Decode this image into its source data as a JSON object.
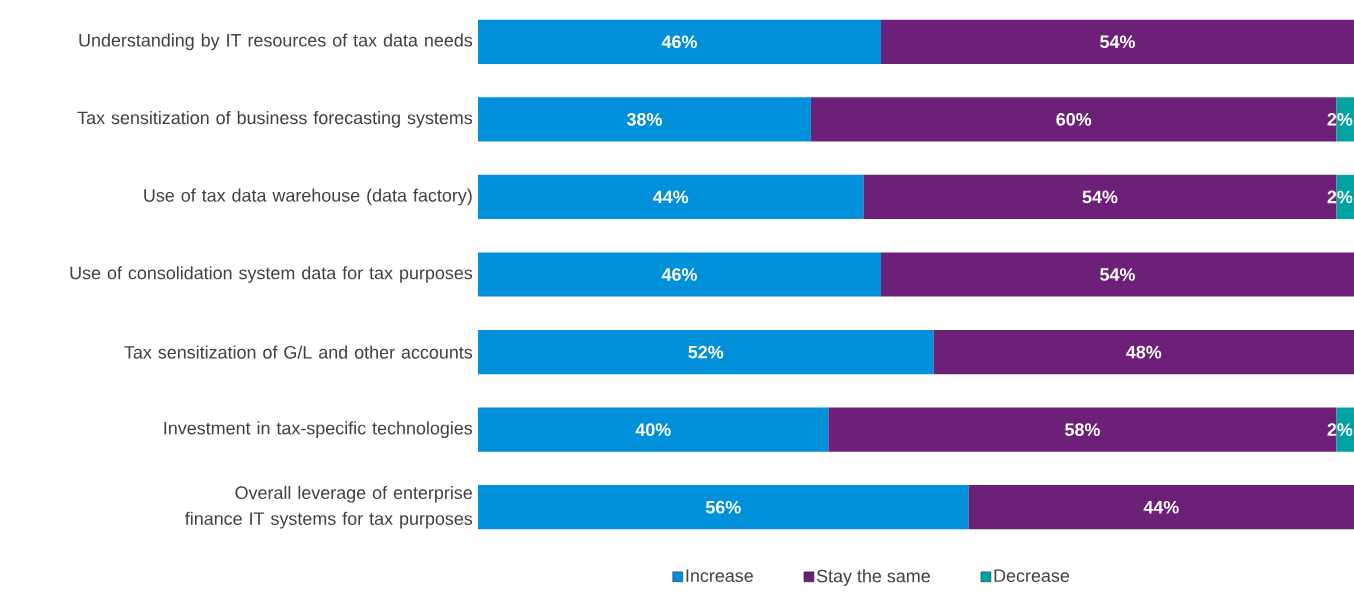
{
  "chart_data": {
    "type": "bar",
    "orientation": "horizontal",
    "stacked": true,
    "xlim": [
      0,
      100
    ],
    "tick_labels": "y",
    "legend": "bottom",
    "grid": false,
    "categories": [
      "Understanding by IT resources of tax data needs",
      "Tax sensitization of business forecasting systems",
      "Use of tax data warehouse (data factory)",
      "Use of consolidation system data for tax purposes",
      "Tax sensitization of G/L and other accounts",
      "Investment in tax-specific technologies",
      "Overall leverage of enterprise finance IT systems for tax purposes"
    ],
    "series": [
      {
        "name": "Increase",
        "color": "#0091da",
        "values": [
          46,
          38,
          44,
          46,
          52,
          40,
          56
        ],
        "value_labels": [
          "46%",
          "38%",
          "44%",
          "46%",
          "52%",
          "40%",
          "56%"
        ]
      },
      {
        "name": "Stay the same",
        "color": "#6d2077",
        "values": [
          54,
          60,
          54,
          54,
          48,
          58,
          44
        ],
        "value_labels": [
          "54%",
          "60%",
          "54%",
          "54%",
          "48%",
          "58%",
          "44%"
        ]
      },
      {
        "name": "Decrease",
        "color": "#00a3a1",
        "values": [
          null,
          2,
          2,
          null,
          null,
          2,
          null
        ],
        "value_labels": [
          null,
          "2%",
          "2%",
          null,
          null,
          "2%",
          null
        ]
      }
    ]
  }
}
